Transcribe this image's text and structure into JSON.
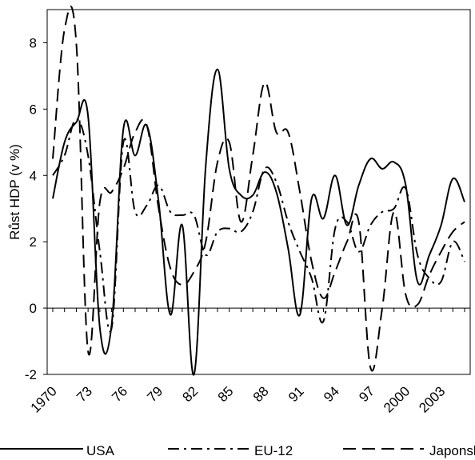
{
  "chart_data": {
    "type": "line",
    "title": "",
    "xlabel": "",
    "ylabel": "Růst HDP (v %)",
    "ylim": [
      -2,
      9
    ],
    "yticks": [
      -2,
      0,
      2,
      4,
      6,
      8
    ],
    "xlim": [
      1970,
      2005
    ],
    "xtick_labels": [
      "1970",
      "73",
      "76",
      "79",
      "82",
      "85",
      "88",
      "91",
      "94",
      "97",
      "2000",
      "2003"
    ],
    "xtick_years": [
      1970,
      1973,
      1976,
      1979,
      1982,
      1985,
      1988,
      1991,
      1994,
      1997,
      2000,
      2003
    ],
    "grid": false,
    "legend_position": "bottom",
    "series": [
      {
        "name": "USA",
        "dash": "solid",
        "color": "#000000",
        "x": [
          1970,
          1971,
          1972,
          1973,
          1974,
          1975,
          1976,
          1977,
          1978,
          1979,
          1980,
          1981,
          1982,
          1983,
          1984,
          1985,
          1986,
          1987,
          1988,
          1989,
          1990,
          1991,
          1992,
          1993,
          1994,
          1995,
          1996,
          1997,
          1998,
          1999,
          2000,
          2001,
          2002,
          2003,
          2004,
          2005
        ],
        "values": [
          3.3,
          5.0,
          5.6,
          5.8,
          -0.6,
          -0.5,
          5.4,
          4.6,
          5.5,
          3.2,
          -0.2,
          2.5,
          -2.0,
          4.3,
          7.2,
          4.2,
          3.4,
          3.4,
          4.1,
          3.5,
          1.8,
          -0.2,
          3.3,
          2.7,
          4.0,
          2.5,
          3.7,
          4.5,
          4.2,
          4.4,
          3.7,
          0.8,
          1.6,
          2.5,
          3.9,
          3.2
        ]
      },
      {
        "name": "EU-12",
        "dash": "dashdot",
        "color": "#000000",
        "x": [
          1970,
          1971,
          1972,
          1973,
          1974,
          1975,
          1976,
          1977,
          1978,
          1979,
          1980,
          1981,
          1982,
          1983,
          1984,
          1985,
          1986,
          1987,
          1988,
          1989,
          1990,
          1991,
          1992,
          1993,
          1994,
          1995,
          1996,
          1997,
          1998,
          1999,
          2000,
          2001,
          2002,
          2003,
          2004,
          2005
        ],
        "values": [
          4.0,
          4.6,
          5.7,
          4.6,
          1.7,
          -0.6,
          5.0,
          2.9,
          3.1,
          3.7,
          2.9,
          2.8,
          2.8,
          1.6,
          2.3,
          2.4,
          2.3,
          2.9,
          4.2,
          3.8,
          2.6,
          1.7,
          0.9,
          -0.4,
          2.4,
          2.6,
          1.7,
          2.5,
          2.9,
          3.0,
          3.6,
          1.6,
          0.9,
          0.8,
          2.0,
          1.4
        ]
      },
      {
        "name": "Japonsko",
        "dash": "dashed",
        "color": "#000000",
        "x": [
          1970,
          1971,
          1972,
          1973,
          1974,
          1975,
          1976,
          1977,
          1978,
          1979,
          1980,
          1981,
          1982,
          1983,
          1984,
          1985,
          1986,
          1987,
          1988,
          1989,
          1990,
          1991,
          1992,
          1993,
          1994,
          1995,
          1996,
          1997,
          1998,
          1999,
          2000,
          2001,
          2002,
          2003,
          2004,
          2005
        ],
        "values": [
          4.5,
          8.4,
          8.0,
          -1.3,
          3.2,
          3.5,
          4.2,
          5.3,
          5.5,
          3.0,
          1.2,
          0.7,
          1.1,
          2.0,
          4.4,
          5.0,
          2.6,
          4.6,
          6.8,
          5.3,
          5.3,
          3.5,
          1.4,
          0.3,
          1.1,
          2.0,
          2.6,
          -1.8,
          0.0,
          2.9,
          0.4,
          0.1,
          1.0,
          1.7,
          2.3,
          2.6
        ]
      }
    ]
  }
}
